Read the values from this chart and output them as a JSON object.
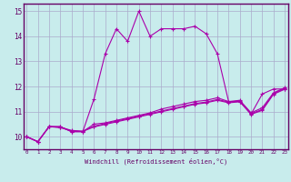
{
  "xlabel": "Windchill (Refroidissement éolien,°C)",
  "bg_color": "#c8ecec",
  "grid_color": "#aaaacc",
  "line_color": "#aa00aa",
  "spine_color": "#660066",
  "xmin": 0,
  "xmax": 23,
  "ymin": 9.5,
  "ymax": 15.3,
  "yticks": [
    10,
    11,
    12,
    13,
    14,
    15
  ],
  "series": [
    [
      10.0,
      9.8,
      10.4,
      10.4,
      10.2,
      10.2,
      11.5,
      13.3,
      14.3,
      13.8,
      15.0,
      14.0,
      14.3,
      14.3,
      14.3,
      14.4,
      14.1,
      13.3,
      11.4,
      11.4,
      10.9,
      11.7,
      11.9,
      11.9
    ],
    [
      10.0,
      9.8,
      10.4,
      10.4,
      10.2,
      10.2,
      10.5,
      10.55,
      10.65,
      10.75,
      10.85,
      10.95,
      11.1,
      11.2,
      11.3,
      11.4,
      11.45,
      11.55,
      11.4,
      11.45,
      10.95,
      11.15,
      11.75,
      11.95
    ],
    [
      10.0,
      9.8,
      10.4,
      10.38,
      10.25,
      10.22,
      10.42,
      10.52,
      10.62,
      10.72,
      10.82,
      10.92,
      11.02,
      11.12,
      11.22,
      11.32,
      11.38,
      11.48,
      11.38,
      11.42,
      10.92,
      11.08,
      11.72,
      11.92
    ],
    [
      10.0,
      9.8,
      10.4,
      10.36,
      10.23,
      10.21,
      10.39,
      10.49,
      10.59,
      10.69,
      10.79,
      10.89,
      10.99,
      11.09,
      11.19,
      11.29,
      11.35,
      11.45,
      11.35,
      11.39,
      10.89,
      11.05,
      11.69,
      11.89
    ]
  ]
}
